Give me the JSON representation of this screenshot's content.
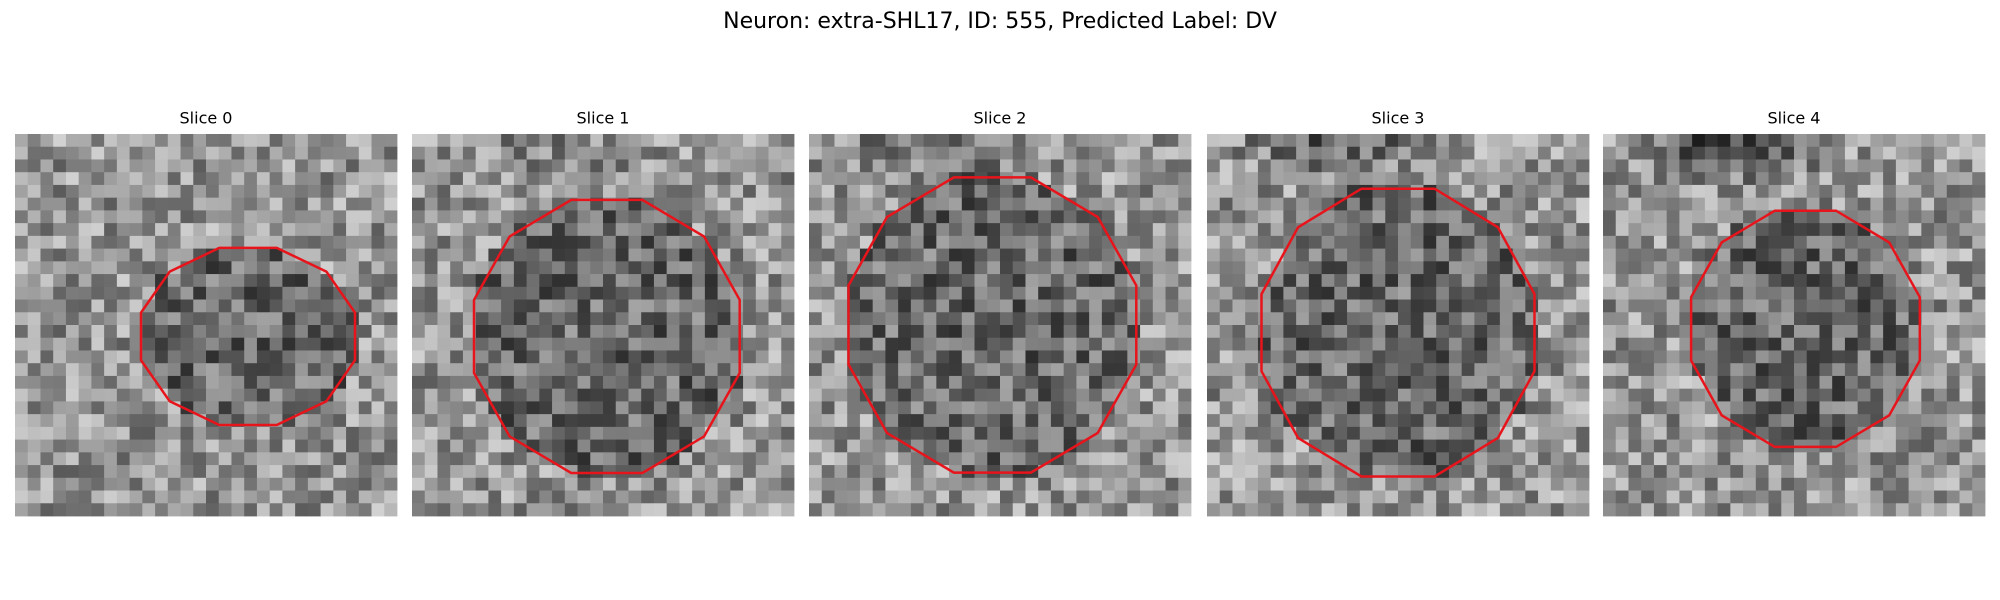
{
  "title": "Neuron: extra-SHL17, ID: 555, Predicted Label: DV",
  "panels": [
    {
      "title": "Slice 0"
    },
    {
      "title": "Slice 1"
    },
    {
      "title": "Slice 2"
    },
    {
      "title": "Slice 3"
    },
    {
      "title": "Slice 4"
    }
  ]
}
